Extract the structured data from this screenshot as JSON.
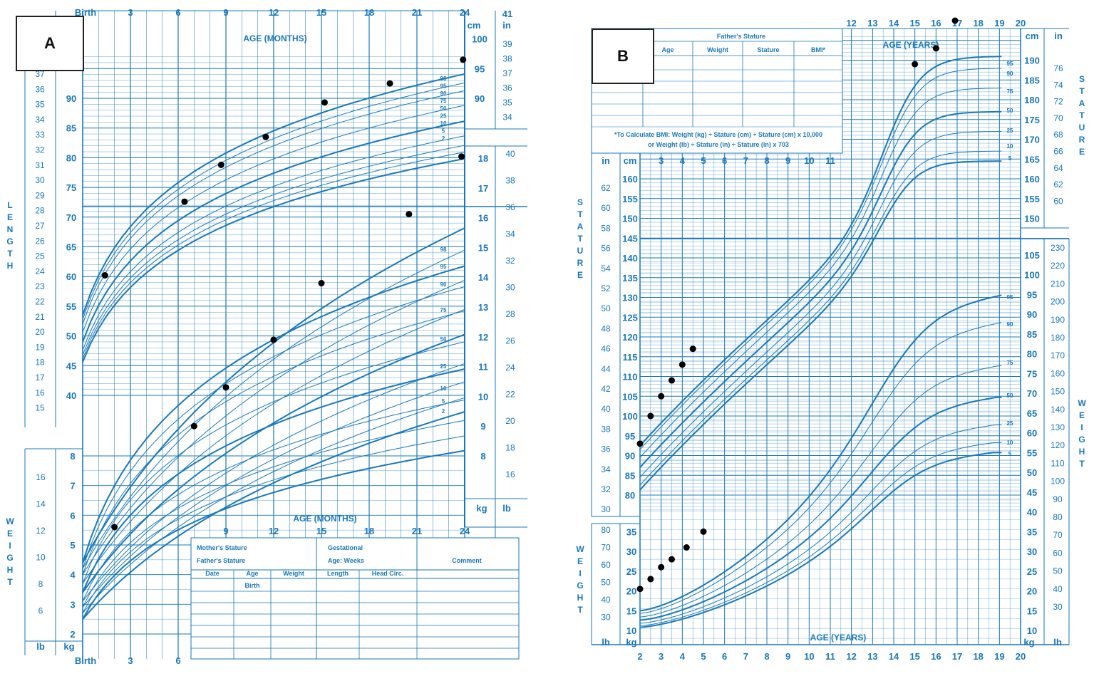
{
  "panels": {
    "a": "A",
    "b": "B"
  },
  "chartA": {
    "top_age_ticks": [
      "Birth",
      "3",
      "6",
      "9",
      "12",
      "15",
      "18",
      "21",
      "24"
    ],
    "top_right_in": "41",
    "age_title": "AGE (MONTHS)",
    "unit_cm": "cm",
    "unit_in": "in",
    "unit_kg": "kg",
    "unit_lb": "lb",
    "length_cm_left": [
      "90",
      "85",
      "80",
      "75",
      "70",
      "65",
      "60",
      "55",
      "50",
      "45",
      "40"
    ],
    "length_cm_right": [
      "100",
      "95",
      "90"
    ],
    "length_in_left": [
      "37",
      "36",
      "35",
      "34",
      "33",
      "32",
      "31",
      "30",
      "29",
      "28",
      "27",
      "26",
      "25",
      "24",
      "23",
      "22",
      "21",
      "20",
      "19",
      "18",
      "17",
      "16",
      "15"
    ],
    "length_in_right": [
      "39",
      "38",
      "37",
      "36",
      "35",
      "34"
    ],
    "weight_kg_right": [
      "18",
      "17",
      "16",
      "15",
      "14",
      "13",
      "12",
      "11",
      "10",
      "9",
      "8"
    ],
    "weight_lb_right": [
      "40",
      "38",
      "36",
      "34",
      "32",
      "30",
      "28",
      "26",
      "24",
      "22",
      "20",
      "18",
      "16"
    ],
    "weight_kg_left": [
      "8",
      "7",
      "6",
      "5",
      "4",
      "3",
      "2"
    ],
    "weight_lb_left": [
      "16",
      "14",
      "12",
      "10",
      "8",
      "6"
    ],
    "length_label": "LENGTH",
    "weight_label": "WEIGHT",
    "length_percentiles": [
      "98",
      "95",
      "90",
      "75",
      "50",
      "25",
      "10",
      "5",
      "2"
    ],
    "weight_percentiles": [
      "98",
      "95",
      "90",
      "75",
      "50",
      "25",
      "10",
      "5",
      "2"
    ],
    "bottom_age_ticks": [
      "9",
      "12",
      "15",
      "18",
      "21",
      "24"
    ],
    "bottom_left_ticks": [
      "Birth",
      "3",
      "6"
    ],
    "form": {
      "mothers_stature": "Mother's Stature",
      "fathers_stature": "Father's Stature",
      "gestational": "Gestational",
      "age_weeks": "Age:            Weeks",
      "comment": "Comment",
      "cols": [
        "Date",
        "Age",
        "Weight",
        "Length",
        "Head Circ."
      ],
      "birth": "Birth"
    }
  },
  "chartB": {
    "form": {
      "fathers_stature": "Father's Stature",
      "cols": [
        "Age",
        "Weight",
        "Stature",
        "BMI*"
      ],
      "bmi_note_1": "*To Calculate BMI: Weight (kg) ÷ Stature (cm) ÷ Stature (cm) x 10,000",
      "bmi_note_2": "or Weight (lb) ÷ Stature (in) ÷ Stature (in) x 703"
    },
    "age_title": "AGE (YEARS)",
    "top_age_ticks": [
      "12",
      "13",
      "14",
      "15",
      "16",
      "17",
      "18",
      "19",
      "20"
    ],
    "mid_age_ticks": [
      "3",
      "4",
      "5",
      "6",
      "7",
      "8",
      "9",
      "10",
      "11"
    ],
    "bottom_age_ticks": [
      "2",
      "3",
      "4",
      "5",
      "6",
      "7",
      "8",
      "9",
      "10",
      "11",
      "12",
      "13",
      "14",
      "15",
      "16",
      "17",
      "18",
      "19",
      "20"
    ],
    "unit_cm": "cm",
    "unit_in": "in",
    "unit_kg": "kg",
    "unit_lb": "lb",
    "stature_cm_right": [
      "190",
      "185",
      "180",
      "175",
      "170",
      "165",
      "160",
      "155",
      "150"
    ],
    "stature_in_right": [
      "76",
      "74",
      "72",
      "70",
      "68",
      "66",
      "64",
      "62",
      "60"
    ],
    "stature_cm_left": [
      "160",
      "155",
      "150",
      "145",
      "140",
      "135",
      "130",
      "125",
      "120",
      "115",
      "110",
      "105",
      "100",
      "95",
      "90",
      "85",
      "80"
    ],
    "stature_in_left": [
      "62",
      "60",
      "58",
      "56",
      "54",
      "52",
      "50",
      "48",
      "46",
      "44",
      "42",
      "40",
      "38",
      "36",
      "34",
      "32",
      "30"
    ],
    "weight_kg_right": [
      "105",
      "100",
      "95",
      "90",
      "85",
      "80",
      "75",
      "70",
      "65",
      "60",
      "55",
      "50",
      "45",
      "40",
      "35",
      "30",
      "25",
      "20",
      "15",
      "10"
    ],
    "weight_lb_right": [
      "230",
      "220",
      "210",
      "200",
      "190",
      "180",
      "170",
      "160",
      "150",
      "140",
      "130",
      "120",
      "110",
      "100",
      "90",
      "80",
      "70",
      "60",
      "50",
      "40",
      "30"
    ],
    "weight_kg_left": [
      "35",
      "30",
      "25",
      "20",
      "15",
      "10"
    ],
    "weight_lb_left": [
      "80",
      "70",
      "60",
      "50",
      "40",
      "30"
    ],
    "stature_label": "STATURE",
    "weight_label": "WEIGHT",
    "stature_percentiles": [
      "95",
      "90",
      "75",
      "50",
      "25",
      "10",
      "5"
    ],
    "weight_percentiles": [
      "95",
      "90",
      "75",
      "50",
      "25",
      "10",
      "5"
    ]
  },
  "chart_data": [
    {
      "type": "scatter",
      "title": "AGE (MONTHS)",
      "xlabel": "AGE (MONTHS)",
      "ylabel": "LENGTH / WEIGHT",
      "xlim": [
        0,
        24
      ],
      "series": [
        {
          "name": "LENGTH",
          "x": [
            1.4,
            6.4,
            8.7,
            11.5,
            15.2,
            19.3,
            20.5,
            23.8,
            23.9
          ],
          "y": [
            60.2,
            72.6,
            78.8,
            83.5,
            89.3,
            92.5,
            70.5,
            80.2,
            96.5
          ]
        },
        {
          "name": "WEIGHT",
          "x": [
            2,
            7,
            9,
            12,
            15
          ],
          "y": [
            5.6,
            9,
            10.3,
            11.9,
            13.8
          ]
        }
      ],
      "percentiles": [
        "2",
        "5",
        "10",
        "25",
        "50",
        "75",
        "90",
        "95",
        "98"
      ]
    },
    {
      "type": "scatter",
      "title": "AGE (YEARS)",
      "xlabel": "AGE (YEARS)",
      "ylabel": "STATURE / WEIGHT",
      "xlim": [
        2,
        20
      ],
      "series": [
        {
          "name": "STATURE",
          "x": [
            2,
            2.5,
            3,
            3.5,
            4,
            4.5,
            15,
            16,
            16.9
          ],
          "y": [
            93,
            100,
            105,
            109,
            113,
            117,
            189,
            193,
            200
          ]
        },
        {
          "name": "WEIGHT",
          "x": [
            2,
            2.5,
            3,
            3.5,
            4.2,
            5
          ],
          "y": [
            20.5,
            23,
            26,
            28,
            31,
            35
          ]
        }
      ],
      "percentiles": [
        "5",
        "10",
        "25",
        "50",
        "75",
        "90",
        "95"
      ]
    }
  ]
}
